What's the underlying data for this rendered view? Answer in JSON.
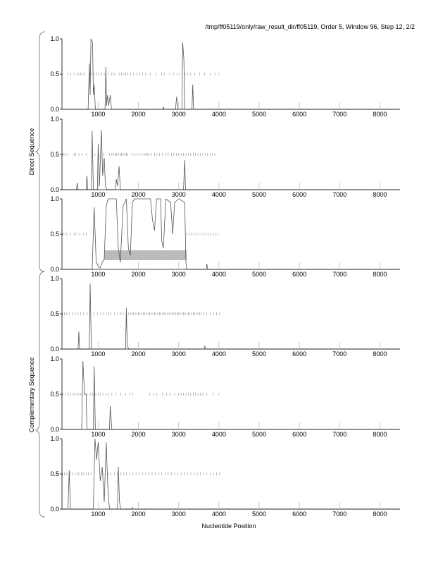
{
  "chart_data": {
    "type": "line",
    "title": "/tmp/ff05119/only/raw_result_dir/ff05119, Order 5, Window 96, Step 12, 2/2",
    "xlabel": "Nucleotide Position",
    "group_labels": [
      "Direct Sequence",
      "Complementary Sequence"
    ],
    "xlim": [
      100,
      8500
    ],
    "ylim": [
      0,
      1
    ],
    "x_ticks": [
      1000,
      2000,
      3000,
      4000,
      5000,
      6000,
      7000,
      8000
    ],
    "y_ticks": [
      "0.0",
      "0.5",
      "1.0"
    ],
    "grid": false,
    "line_color": "#555555",
    "highlight_color": "#bbbbbb",
    "panels": [
      {
        "points": [
          [
            100,
            0
          ],
          [
            750,
            0
          ],
          [
            780,
            0.65
          ],
          [
            800,
            0.2
          ],
          [
            820,
            1.0
          ],
          [
            860,
            0.95
          ],
          [
            880,
            0.2
          ],
          [
            900,
            0.35
          ],
          [
            930,
            0
          ],
          [
            1170,
            0
          ],
          [
            1190,
            0.6
          ],
          [
            1210,
            0.05
          ],
          [
            1230,
            0.2
          ],
          [
            1260,
            0.05
          ],
          [
            1300,
            0.2
          ],
          [
            1330,
            0
          ],
          [
            2600,
            0
          ],
          [
            2620,
            0.03
          ],
          [
            2640,
            0
          ],
          [
            2920,
            0
          ],
          [
            2950,
            0.18
          ],
          [
            2980,
            0
          ],
          [
            3080,
            0
          ],
          [
            3100,
            0.95
          ],
          [
            3130,
            0.7
          ],
          [
            3150,
            0
          ],
          [
            3330,
            0
          ],
          [
            3350,
            0.35
          ],
          [
            3370,
            0
          ],
          [
            8500,
            0
          ]
        ],
        "ticks": [
          250,
          320,
          400,
          470,
          520,
          560,
          600,
          650,
          830,
          900,
          960,
          1020,
          1090,
          1150,
          1260,
          1330,
          1380,
          1420,
          1520,
          1580,
          1640,
          1680,
          1720,
          1800,
          1880,
          1960,
          2030,
          2100,
          2180,
          2290,
          2440,
          2580,
          2640,
          2780,
          2880,
          2960,
          3030,
          3150,
          3230,
          3300,
          3400,
          3520,
          3640,
          3780,
          3900,
          4000
        ]
      },
      {
        "points": [
          [
            100,
            0
          ],
          [
            460,
            0
          ],
          [
            480,
            0.1
          ],
          [
            500,
            0
          ],
          [
            700,
            0
          ],
          [
            720,
            0.2
          ],
          [
            740,
            0
          ],
          [
            830,
            0
          ],
          [
            850,
            0.83
          ],
          [
            880,
            0
          ],
          [
            980,
            0
          ],
          [
            1000,
            0.65
          ],
          [
            1030,
            0.05
          ],
          [
            1080,
            0.85
          ],
          [
            1110,
            0.2
          ],
          [
            1150,
            0.45
          ],
          [
            1180,
            0.05
          ],
          [
            1220,
            0
          ],
          [
            1430,
            0
          ],
          [
            1450,
            0.15
          ],
          [
            1480,
            0.05
          ],
          [
            1520,
            0.33
          ],
          [
            1550,
            0
          ],
          [
            3120,
            0
          ],
          [
            3150,
            0.42
          ],
          [
            3170,
            0
          ],
          [
            8500,
            0
          ]
        ],
        "ticks": [
          110,
          150,
          190,
          240,
          400,
          440,
          520,
          600,
          700,
          840,
          920,
          1060,
          1140,
          1280,
          1340,
          1380,
          1420,
          1460,
          1500,
          1540,
          1580,
          1620,
          1660,
          1700,
          1740,
          1840,
          1900,
          1960,
          2020,
          2080,
          2140,
          2180,
          2220,
          2260,
          2320,
          2400,
          2460,
          2520,
          2600,
          2680,
          2740,
          2820,
          2880,
          2940,
          3000,
          3060,
          3120,
          3180,
          3240,
          3300,
          3360,
          3420,
          3480,
          3540,
          3600,
          3660,
          3720,
          3780,
          3840,
          3900
        ]
      },
      {
        "points": [
          [
            100,
            0
          ],
          [
            850,
            0
          ],
          [
            900,
            0.88
          ],
          [
            950,
            0.1
          ],
          [
            1000,
            0.05
          ],
          [
            1050,
            0.02
          ],
          [
            1100,
            0.1
          ],
          [
            1150,
            0.15
          ],
          [
            1200,
            0.9
          ],
          [
            1250,
            1.0
          ],
          [
            1450,
            1.0
          ],
          [
            1500,
            0.3
          ],
          [
            1550,
            0.1
          ],
          [
            1620,
            0.9
          ],
          [
            1700,
            1.0
          ],
          [
            1750,
            0.3
          ],
          [
            1800,
            0.2
          ],
          [
            1850,
            0.95
          ],
          [
            1900,
            1.0
          ],
          [
            2300,
            1.0
          ],
          [
            2350,
            0.7
          ],
          [
            2400,
            0.55
          ],
          [
            2450,
            1.0
          ],
          [
            2550,
            1.0
          ],
          [
            2580,
            0.4
          ],
          [
            2620,
            0.3
          ],
          [
            2680,
            1.0
          ],
          [
            2800,
            0.95
          ],
          [
            2850,
            0.5
          ],
          [
            2900,
            0.95
          ],
          [
            3000,
            1.0
          ],
          [
            3150,
            0.95
          ],
          [
            3180,
            0.1
          ],
          [
            3200,
            0
          ],
          [
            3680,
            0
          ],
          [
            3700,
            0.08
          ],
          [
            3720,
            0
          ],
          [
            8500,
            0
          ]
        ],
        "ticks": [
          110,
          150,
          220,
          300,
          400,
          450,
          540,
          640,
          700,
          3200,
          3260,
          3320,
          3380,
          3440,
          3500,
          3560,
          3620,
          3680,
          3740,
          3800,
          3860,
          3920,
          3980
        ],
        "highlight": {
          "x": [
            1150,
            3200
          ],
          "y": [
            0.13,
            0.27
          ]
        }
      },
      {
        "points": [
          [
            100,
            0
          ],
          [
            500,
            0
          ],
          [
            520,
            0.25
          ],
          [
            540,
            0
          ],
          [
            780,
            0
          ],
          [
            800,
            0.93
          ],
          [
            830,
            0
          ],
          [
            1680,
            0
          ],
          [
            1700,
            0.58
          ],
          [
            1720,
            0.05
          ],
          [
            1760,
            0
          ],
          [
            3630,
            0
          ],
          [
            3650,
            0.04
          ],
          [
            3670,
            0
          ],
          [
            8500,
            0
          ]
        ],
        "ticks": [
          110,
          160,
          220,
          280,
          360,
          420,
          500,
          560,
          640,
          720,
          900,
          980,
          1060,
          1120,
          1200,
          1260,
          1320,
          1400,
          1480,
          1560,
          1620,
          1760,
          1800,
          1840,
          1880,
          1920,
          1960,
          2000,
          2040,
          2080,
          2120,
          2160,
          2200,
          2240,
          2280,
          2320,
          2360,
          2400,
          2440,
          2480,
          2520,
          2560,
          2600,
          2640,
          2680,
          2720,
          2760,
          2800,
          2840,
          2880,
          2920,
          2960,
          3000,
          3040,
          3080,
          3120,
          3160,
          3200,
          3240,
          3280,
          3320,
          3360,
          3400,
          3440,
          3480,
          3520,
          3560,
          3620,
          3700,
          3780,
          3860,
          3940,
          4020
        ]
      },
      {
        "points": [
          [
            100,
            0
          ],
          [
            590,
            0
          ],
          [
            620,
            0.97
          ],
          [
            660,
            0.5
          ],
          [
            700,
            0.5
          ],
          [
            720,
            0
          ],
          [
            880,
            0
          ],
          [
            900,
            0.9
          ],
          [
            930,
            0
          ],
          [
            1280,
            0
          ],
          [
            1300,
            0.33
          ],
          [
            1340,
            0
          ],
          [
            8500,
            0
          ]
        ],
        "ticks": [
          120,
          200,
          260,
          320,
          380,
          430,
          480,
          520,
          560,
          600,
          650,
          720,
          800,
          860,
          940,
          1000,
          1060,
          1120,
          1200,
          1260,
          1340,
          1440,
          1560,
          1680,
          1780,
          1860,
          2280,
          2380,
          2460,
          2600,
          2700,
          2780,
          2900,
          3000,
          3060,
          3120,
          3180,
          3240,
          3300,
          3360,
          3420,
          3480,
          3540,
          3600,
          3700,
          3860,
          4000
        ]
      },
      {
        "points": [
          [
            100,
            0
          ],
          [
            250,
            0
          ],
          [
            280,
            0.55
          ],
          [
            310,
            0
          ],
          [
            880,
            0
          ],
          [
            920,
            1.0
          ],
          [
            960,
            0.7
          ],
          [
            1000,
            0.95
          ],
          [
            1050,
            0.4
          ],
          [
            1100,
            0.6
          ],
          [
            1150,
            0.1
          ],
          [
            1200,
            0.95
          ],
          [
            1240,
            0.3
          ],
          [
            1280,
            0
          ],
          [
            1480,
            0
          ],
          [
            1500,
            0.6
          ],
          [
            1530,
            0.1
          ],
          [
            1560,
            0
          ],
          [
            1840,
            0
          ],
          [
            1850,
            0.02
          ],
          [
            1860,
            0
          ],
          [
            8500,
            0
          ]
        ],
        "ticks": [
          110,
          160,
          220,
          300,
          360,
          420,
          480,
          520,
          580,
          640,
          700,
          760,
          820,
          1140,
          1260,
          1320,
          1400,
          1480,
          1560,
          1640,
          1700,
          1780,
          1860,
          1940,
          2020,
          2100,
          2180,
          2260,
          2340,
          2420,
          2500,
          2580,
          2660,
          2740,
          2820,
          2900,
          2980,
          3060,
          3140,
          3220,
          3300,
          3380,
          3460,
          3540,
          3620,
          3700,
          3780,
          3860,
          3940,
          4020
        ]
      }
    ]
  }
}
